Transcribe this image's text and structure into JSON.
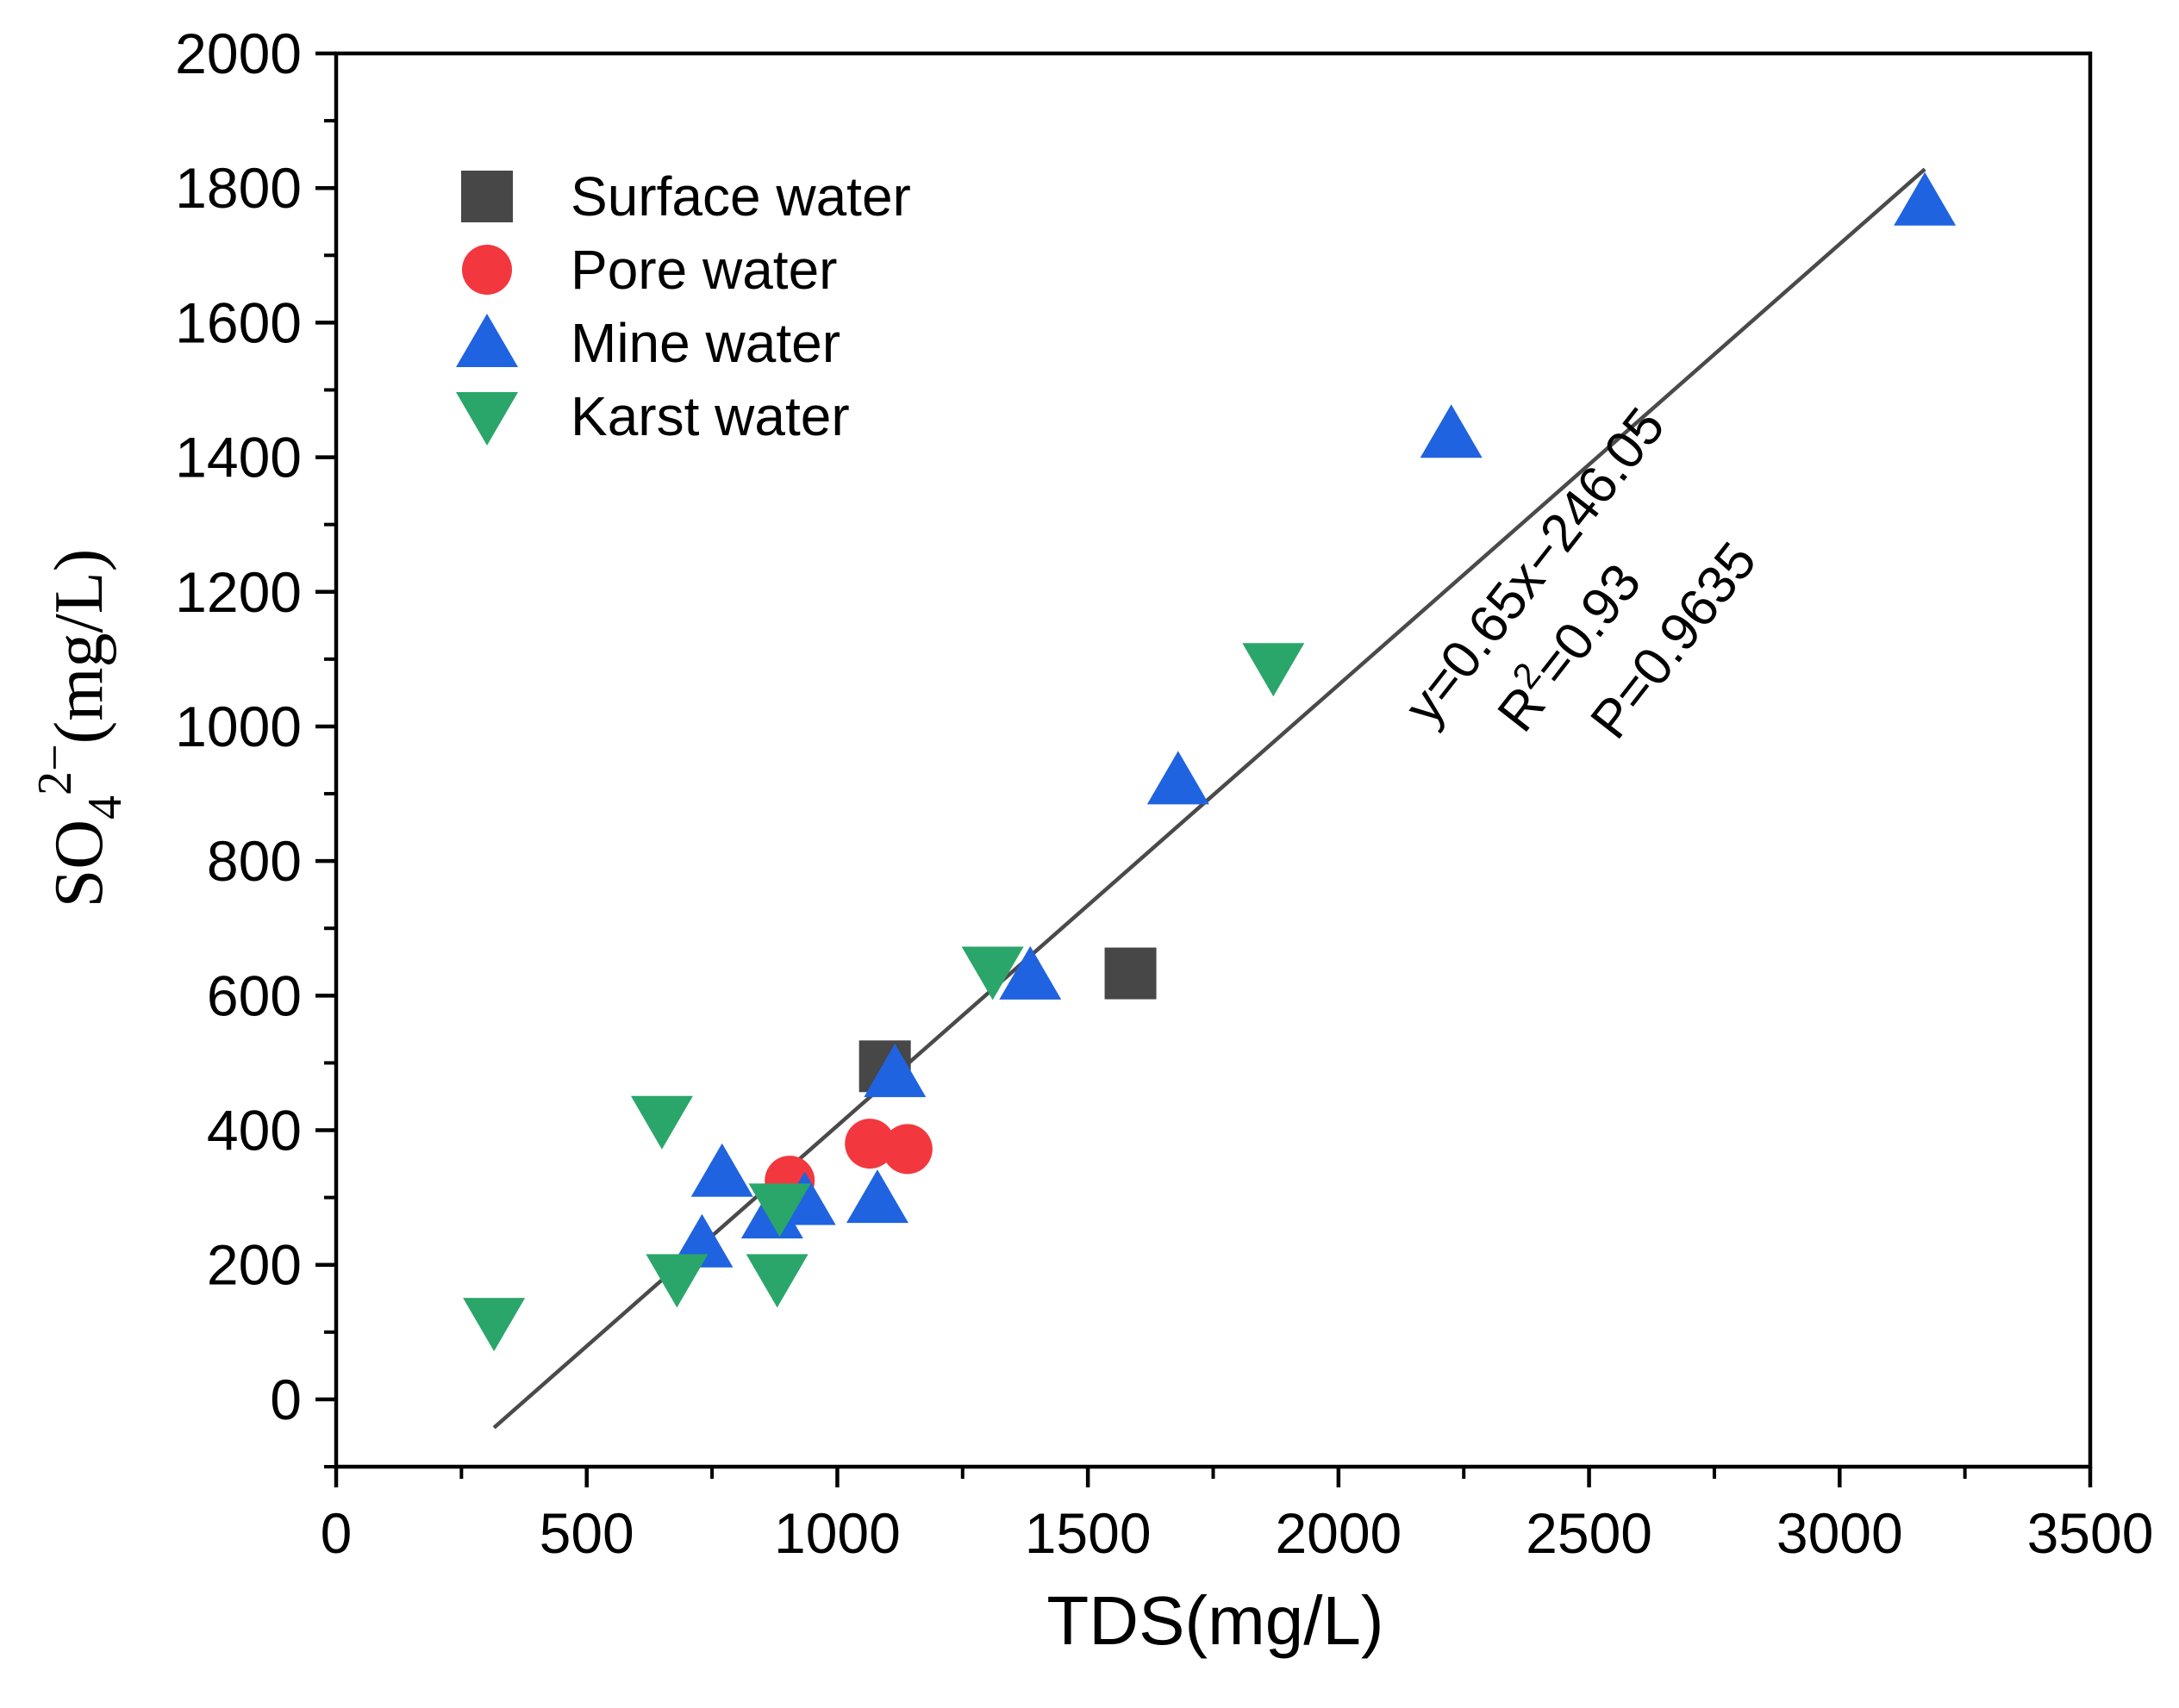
{
  "chart_data": {
    "type": "scatter",
    "xlabel": "TDS(mg/L)",
    "ylabel": {
      "base": "SO",
      "sub": "4",
      "sup": "2−",
      "unit": "(mg/L)"
    },
    "xlim": [
      0,
      3500
    ],
    "ylim": [
      -100,
      2000
    ],
    "xticks": [
      0,
      500,
      1000,
      1500,
      2000,
      2500,
      3000,
      3500
    ],
    "xtick_labels": [
      "0",
      "500",
      "1000",
      "1500",
      "2000",
      "2500",
      "3000",
      "3500"
    ],
    "yticks": [
      0,
      200,
      400,
      600,
      800,
      1000,
      1200,
      1400,
      1600,
      1800,
      2000
    ],
    "ytick_labels": [
      "0",
      "200",
      "400",
      "600",
      "800",
      "1000",
      "1200",
      "1400",
      "1600",
      "1800",
      "2000"
    ],
    "legend_position": "top-left",
    "series": [
      {
        "name": "Surface water",
        "marker": "square",
        "color": "#474747",
        "points": [
          [
            1095,
            495
          ],
          [
            1585,
            633
          ]
        ]
      },
      {
        "name": "Pore water",
        "marker": "circle",
        "color": "#f2383e",
        "points": [
          [
            905,
            325
          ],
          [
            1065,
            380
          ],
          [
            1140,
            372
          ]
        ]
      },
      {
        "name": "Mine water",
        "marker": "triangle-up",
        "color": "#1f63e0",
        "points": [
          [
            730,
            232
          ],
          [
            770,
            337
          ],
          [
            870,
            275
          ],
          [
            935,
            295
          ],
          [
            1080,
            298
          ],
          [
            1115,
            485
          ],
          [
            1385,
            630
          ],
          [
            1680,
            920
          ],
          [
            2225,
            1435
          ],
          [
            3170,
            1780
          ]
        ]
      },
      {
        "name": "Karst water",
        "marker": "triangle-down",
        "color": "#2ba66a",
        "points": [
          [
            315,
            115
          ],
          [
            650,
            415
          ],
          [
            680,
            180
          ],
          [
            880,
            180
          ],
          [
            885,
            285
          ],
          [
            1310,
            637
          ],
          [
            1870,
            1088
          ]
        ]
      }
    ],
    "fit_line": {
      "x": [
        315,
        3170
      ],
      "y": [
        -42,
        1828
      ],
      "color": "#4a4a4a"
    },
    "annotations": [
      "y=0.65x−246.05",
      "R",
      "2",
      "=0.93",
      "P=0.9635"
    ]
  }
}
